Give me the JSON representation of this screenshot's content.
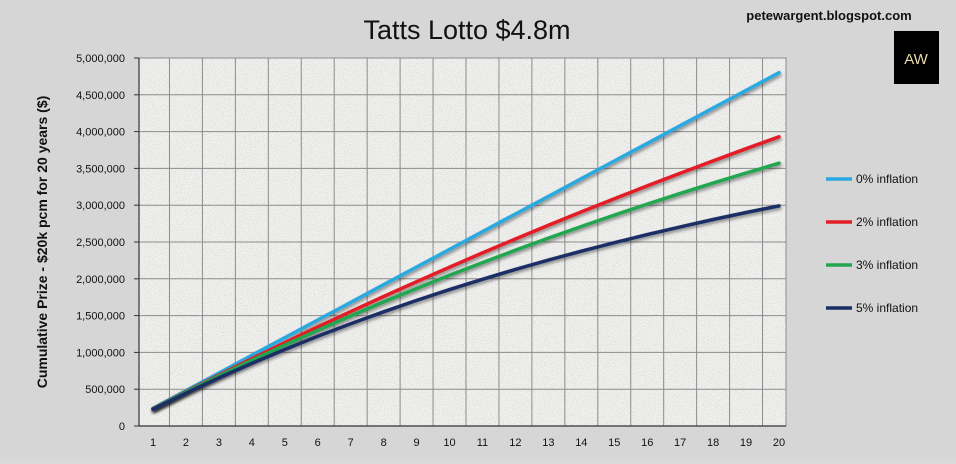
{
  "header": {
    "credit": "petewargent.blogspot.com",
    "logo_text": "AW"
  },
  "chart_data": {
    "type": "line",
    "title": "Tatts Lotto $4.8m",
    "xlabel": "",
    "ylabel": "Cumulative Prize - $20k pcm for 20 years ($)",
    "x": [
      1,
      2,
      3,
      4,
      5,
      6,
      7,
      8,
      9,
      10,
      11,
      12,
      13,
      14,
      15,
      16,
      17,
      18,
      19,
      20
    ],
    "ylim": [
      0,
      5000000
    ],
    "yticks": [
      0,
      500000,
      1000000,
      1500000,
      2000000,
      2500000,
      3000000,
      3500000,
      4000000,
      4500000,
      5000000
    ],
    "ytick_labels": [
      "0",
      "500,000",
      "1,000,000",
      "1,500,000",
      "2,000,000",
      "2,500,000",
      "3,000,000",
      "3,500,000",
      "4,000,000",
      "4,500,000",
      "5,000,000"
    ],
    "grid": true,
    "legend": "right",
    "series": [
      {
        "name": "0% inflation",
        "color": "#29a9e1",
        "values": [
          240000,
          480000,
          720000,
          960000,
          1200000,
          1440000,
          1680000,
          1920000,
          2160000,
          2400000,
          2640000,
          2880000,
          3120000,
          3360000,
          3600000,
          3840000,
          4080000,
          4320000,
          4560000,
          4800000
        ]
      },
      {
        "name": "2% inflation",
        "color": "#e41e26",
        "values": [
          235294,
          466282,
          692737,
          914739,
          1132376,
          1345741,
          1554919,
          1759999,
          1961060,
          2158178,
          2351433,
          2540896,
          2726643,
          2908748,
          3087282,
          3262314,
          3433916,
          3602153,
          3767092,
          3928796
        ]
      },
      {
        "name": "3% inflation",
        "color": "#23a650",
        "values": [
          233010,
          459232,
          678866,
          892103,
          1099129,
          1300126,
          1495268,
          1684725,
          1868663,
          2047245,
          2220626,
          2388958,
          2552388,
          2711057,
          2865104,
          3014664,
          3159868,
          3300843,
          3437711,
          3570593
        ]
      },
      {
        "name": "5% inflation",
        "color": "#1a2e66",
        "values": [
          228571,
          446259,
          653581,
          851029,
          1039075,
          1218167,
          1388731,
          1551172,
          1705878,
          1853217,
          1993540,
          2127181,
          2254458,
          2375675,
          2491119,
          2601066,
          2705777,
          2805502,
          2900478,
          2990931
        ]
      }
    ]
  }
}
